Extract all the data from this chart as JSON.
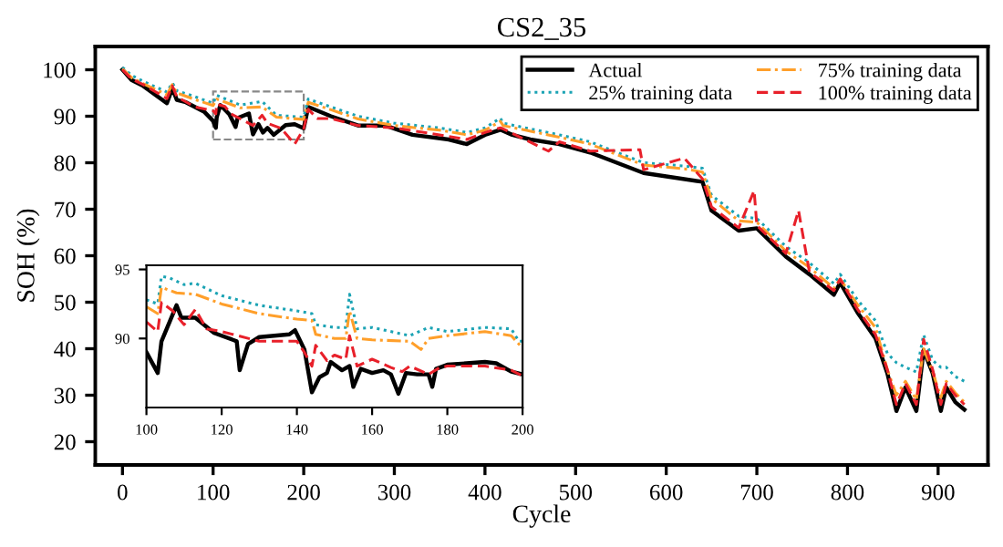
{
  "chart_data": [
    {
      "type": "line",
      "title": "CS2_35",
      "xlabel": "Cycle",
      "ylabel": "SOH (%)",
      "xlim": [
        -30,
        955
      ],
      "ylim": [
        15,
        105
      ],
      "xticks": [
        0,
        100,
        200,
        300,
        400,
        500,
        600,
        700,
        800,
        900
      ],
      "yticks": [
        20,
        30,
        40,
        50,
        60,
        70,
        80,
        90,
        100
      ],
      "grid": false,
      "legend": "top right",
      "marker": "none",
      "series": [
        {
          "name": "Actual",
          "color": "#000000",
          "line_style": "solid",
          "x": [
            0,
            10,
            23,
            49,
            55,
            60,
            70,
            90,
            100,
            103,
            104,
            108,
            118,
            124.8,
            127,
            139.5,
            144,
            150,
            155,
            160,
            167,
            180,
            190,
            200,
            205,
            230,
            260,
            290,
            320,
            360,
            380,
            400,
            417,
            430,
            450,
            482,
            516,
            575,
            640,
            650,
            680,
            700,
            732,
            758,
            785,
            792,
            811,
            831,
            844,
            854,
            864,
            876,
            884,
            894,
            903,
            909,
            919,
            929
          ],
          "values": [
            100,
            97.8,
            96.5,
            92.8,
            96,
            93.5,
            93,
            91,
            89,
            87.5,
            89.8,
            92.4,
            90.4,
            87.7,
            89.6,
            90.6,
            86.1,
            88.3,
            86.5,
            87.5,
            86,
            88.1,
            88.3,
            87.4,
            92,
            90,
            88,
            88,
            86,
            85,
            84,
            86,
            87.1,
            86,
            85,
            84,
            82.2,
            77.8,
            75.9,
            69.7,
            65.4,
            65.9,
            59.8,
            56,
            51.6,
            54.2,
            47.8,
            42.2,
            34.7,
            26.6,
            31.7,
            26.6,
            39.7,
            34.7,
            26.6,
            31.7,
            28.5,
            26.9
          ]
        },
        {
          "name": "25% training data",
          "color": "#1ba3b4",
          "line_style": "dotted",
          "x": [
            0,
            10,
            23,
            49,
            55,
            60,
            80,
            100,
            104,
            130,
            154,
            170,
            200,
            205,
            230,
            260,
            300,
            350,
            380,
            400,
            417,
            420,
            482,
            516,
            575,
            620,
            640,
            650,
            680,
            700,
            732,
            758,
            785,
            792,
            811,
            831,
            844,
            854,
            864,
            876,
            884,
            894,
            903,
            909,
            919,
            929
          ],
          "values": [
            100.5,
            98.8,
            97.5,
            95.2,
            97.2,
            95.5,
            94.2,
            92.8,
            94.5,
            92.4,
            93.2,
            90.2,
            89.8,
            93.7,
            92,
            90,
            88.5,
            87.5,
            86.5,
            87.5,
            89.6,
            88.5,
            86,
            84.5,
            80,
            79.3,
            78.8,
            73,
            68.5,
            68,
            62,
            58.5,
            54,
            56,
            50.5,
            46,
            39,
            37,
            36,
            35,
            43,
            37.5,
            36,
            36,
            34,
            33
          ]
        },
        {
          "name": "75% training data",
          "color": "#ff9f2a",
          "line_style": "dashdot",
          "x": [
            0,
            10,
            23,
            49,
            55,
            60,
            80,
            100,
            104,
            130,
            154,
            170,
            200,
            205,
            230,
            260,
            300,
            350,
            380,
            400,
            417,
            420,
            482,
            516,
            575,
            620,
            640,
            650,
            680,
            700,
            732,
            758,
            785,
            792,
            811,
            831,
            844,
            854,
            864,
            876,
            884,
            894,
            903,
            909,
            919,
            929
          ],
          "values": [
            100.2,
            98.3,
            97,
            94.6,
            96.8,
            95,
            93.6,
            92.3,
            93.7,
            91.8,
            92,
            89.8,
            89.3,
            93,
            91.4,
            89.4,
            88,
            87,
            86,
            87,
            88.9,
            88,
            85.5,
            84,
            79.5,
            78.7,
            78,
            72.3,
            67.5,
            67.2,
            61,
            57.5,
            53,
            55,
            49.5,
            44.5,
            35.5,
            30,
            33,
            29,
            40,
            35,
            29.5,
            33,
            30.5,
            28.5
          ]
        },
        {
          "name": "100% training data",
          "color": "#e8202a",
          "line_style": "dashed",
          "x": [
            0,
            10,
            23,
            49,
            55,
            60,
            80,
            100,
            103,
            104,
            113,
            120,
            144,
            154,
            160,
            175,
            190,
            200,
            205,
            215,
            230,
            260,
            300,
            350,
            380,
            400,
            417,
            420,
            470,
            482,
            516,
            571,
            575,
            620,
            640,
            650,
            680,
            697,
            700,
            732,
            746,
            758,
            785,
            792,
            811,
            831,
            844,
            854,
            864,
            876,
            884,
            894,
            903,
            909,
            919,
            929
          ],
          "values": [
            100,
            98,
            96.8,
            93.8,
            96.5,
            94.2,
            92,
            91.2,
            90.5,
            92.6,
            92.1,
            90.5,
            88,
            90.2,
            88.5,
            87.4,
            84,
            87.3,
            91.5,
            89.5,
            89.5,
            88,
            87.5,
            86,
            85,
            86.5,
            87.5,
            87.3,
            82.5,
            84.5,
            82.5,
            82.8,
            78.5,
            81,
            76.5,
            70.5,
            66,
            74,
            66.5,
            60.5,
            69.7,
            56.5,
            52.5,
            55,
            48.5,
            43,
            35.5,
            28,
            32.5,
            28,
            42,
            35.5,
            28,
            32.5,
            30,
            28
          ]
        }
      ]
    },
    {
      "type": "line",
      "xlim": [
        100,
        200
      ],
      "ylim": [
        85,
        95.3
      ],
      "xticks": [
        100,
        120,
        140,
        160,
        180,
        200
      ],
      "yticks": [
        90,
        95
      ],
      "grid": false,
      "legend": false,
      "marker": "none",
      "series": [
        {
          "color": "#000000",
          "line_style": "solid",
          "x": [
            100,
            103,
            104,
            108,
            109.3,
            113,
            118,
            124,
            124.8,
            127,
            130,
            138,
            139.5,
            142,
            144,
            146,
            148,
            149,
            152,
            154,
            155,
            157,
            160,
            163,
            165,
            167,
            169,
            172,
            175,
            176,
            177,
            180,
            190,
            193,
            197,
            200
          ],
          "values": [
            89,
            87.5,
            89.8,
            92.4,
            91.5,
            91.5,
            90.4,
            89.8,
            87.7,
            89.6,
            90.1,
            90.3,
            90.6,
            89.2,
            86.1,
            87.2,
            87.5,
            88.3,
            87.7,
            88,
            86.5,
            87.8,
            87.5,
            87.7,
            87.4,
            86,
            87.5,
            87.4,
            87.4,
            86.5,
            87.8,
            88.1,
            88.3,
            88.2,
            87.6,
            87.4
          ]
        },
        {
          "color": "#1ba3b4",
          "line_style": "dotted",
          "x": [
            100,
            103,
            104,
            106,
            110,
            113,
            120,
            130,
            140,
            144,
            145,
            150,
            153,
            154,
            156,
            160,
            170,
            175,
            180,
            190,
            197,
            199,
            200
          ],
          "values": [
            92.8,
            92.5,
            94.5,
            94.4,
            93.9,
            94,
            93.1,
            92.4,
            92,
            91.8,
            91,
            90.8,
            90.8,
            93.2,
            90.7,
            90.8,
            90.2,
            90.8,
            90.5,
            90.8,
            90.7,
            89.8,
            89.8
          ]
        },
        {
          "color": "#ff9f2a",
          "line_style": "dashdot",
          "x": [
            100,
            103,
            104,
            108,
            113,
            120,
            130,
            140,
            144,
            145,
            150,
            153,
            154,
            156,
            160,
            170,
            173,
            175,
            180,
            190,
            197,
            200
          ],
          "values": [
            92.3,
            91.8,
            93.7,
            93.3,
            93.2,
            92.5,
            91.8,
            91.4,
            91.3,
            90.3,
            90,
            90,
            92,
            90,
            89.9,
            89.8,
            89.2,
            90,
            90.2,
            90.5,
            90.2,
            89.3
          ]
        },
        {
          "color": "#e8202a",
          "line_style": "dashed",
          "x": [
            100,
            103,
            104,
            107,
            110,
            113,
            116,
            120,
            130,
            140,
            142,
            144,
            145,
            148,
            150,
            153,
            154,
            156,
            160,
            165,
            168,
            170,
            175,
            178,
            180,
            190,
            197,
            200
          ],
          "values": [
            91.2,
            90.5,
            92.6,
            92,
            91,
            92.1,
            90.7,
            90.5,
            89.8,
            89.8,
            89,
            88,
            89.5,
            88.4,
            88.8,
            88.5,
            90.2,
            88,
            88.5,
            87.9,
            87.6,
            88,
            87.4,
            87.9,
            88,
            88,
            87.7,
            87.3
          ]
        }
      ]
    }
  ]
}
